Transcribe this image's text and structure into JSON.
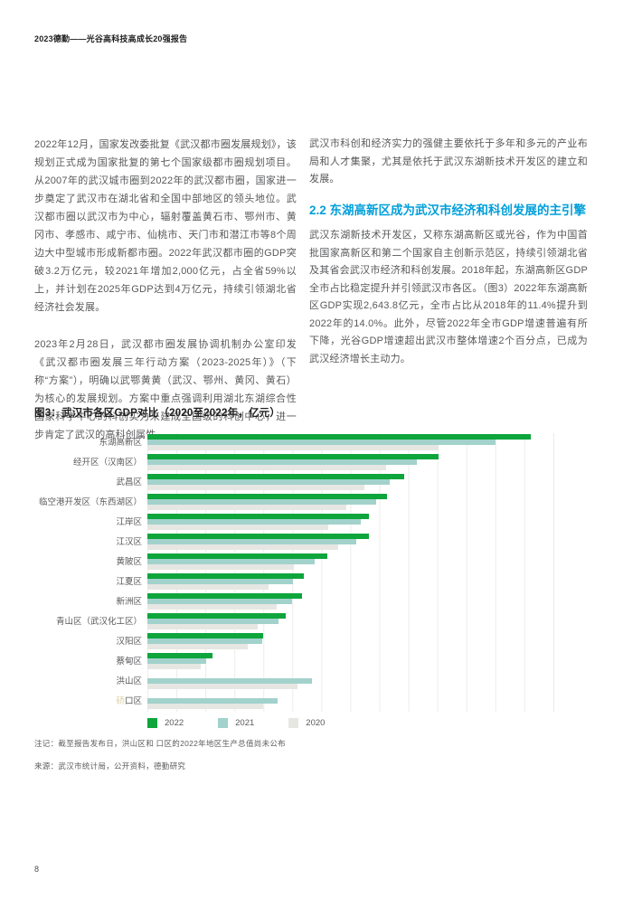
{
  "header": {
    "title": "2023德勤——光谷高科技高成长20强报告"
  },
  "columns": {
    "left": {
      "para1": "2022年12月，国家发改委批复《武汉都市圈发展规划》，该规划正式成为国家批复的第七个国家级都市圈规划项目。从2007年的武汉城市圈到2022年的武汉都市圈，国家进一步奠定了武汉市在湖北省和全国中部地区的领头地位。武汉都市圈以武汉市为中心，辐射覆盖黄石市、鄂州市、黄冈市、孝感市、咸宁市、仙桃市、天门市和潜江市等8个周边大中型城市形成新都市圈。2022年武汉都市圈的GDP突破3.2万亿元，较2021年增加2,000亿元，占全省59%以上，并计划在2025年GDP达到4万亿元，持续引领湖北省经济社会发展。",
      "para2": "2023年2月28日，武汉都市圈发展协调机制办公室印发《武汉都市圈发展三年行动方案（2023-2025年）》（下称“方案”），明确以武鄂黄黄（武汉、鄂州、黄冈、黄石）为核心的发展规划。方案中重点强调利用湖北东湖综合性国家科学中心的科创实力来建成全国级的科创中心，进一步肯定了武汉的高科创属性。"
    },
    "right": {
      "para1": "武汉市科创和经济实力的强健主要依托于多年和多元的产业布局和人才集聚，尤其是依托于武汉东湖新技术开发区的建立和发展。",
      "heading": "2.2 东湖高新区成为武汉市经济和科创发展的主引擎",
      "para2": "武汉东湖新技术开发区，又称东湖高新区或光谷，作为中国首批国家高新区和第二个国家自主创新示范区，持续引领湖北省及其省会武汉市经济和科创发展。2018年起，东湖高新区GDP全市占比稳定提升并引领武汉市各区。（图3）2022年东湖高新区GDP实现2,643.8亿元，全市占比从2018年的11.4%提升到2022年的14.0%。此外，尽管2022年全市GDP增速普遍有所下降，光谷GDP增速超出武汉市整体增速2个百分点，已成为武汉经济增长主动力。"
    }
  },
  "chart_data": {
    "type": "bar",
    "orientation": "horizontal",
    "title": "图3：武汉市各区GDP对比（2020至2022年，亿元）",
    "unit": "亿元",
    "xlim": [
      0,
      2800
    ],
    "gridline_step": 200,
    "grid": true,
    "legend_position": "bottom-left",
    "categories": [
      "东湖高新区",
      "经开区（汉南区）",
      "武昌区",
      "临空港开发区（东西湖区）",
      "江岸区",
      "江汉区",
      "黄陂区",
      "江夏区",
      "新洲区",
      "青山区（武汉化工区）",
      "汉阳区",
      "蔡甸区",
      "洪山区",
      "硚口区"
    ],
    "missing_glyph_categories": [
      "硚口区"
    ],
    "series": [
      {
        "name": "2022",
        "color": "#0ea53c",
        "values": [
          2643.8,
          2010,
          1770,
          1650,
          1530,
          1530,
          1240,
          1080,
          1065,
          955,
          800,
          450,
          null,
          null
        ]
      },
      {
        "name": "2021",
        "color": "#a2d2cb",
        "values": [
          2400,
          1860,
          1670,
          1575,
          1470,
          1440,
          1155,
          1005,
          1000,
          905,
          790,
          405,
          1135,
          900
        ]
      },
      {
        "name": "2020",
        "color": "#e6e6e3",
        "values": [
          2005,
          1645,
          1495,
          1370,
          1245,
          1315,
          1010,
          835,
          890,
          760,
          695,
          370,
          1035,
          800
        ]
      }
    ],
    "note": "注记：截至报告发布日，洪山区和 口区的2022年地区生产总值尚未公布",
    "source": "来源：武汉市统计局，公开资料，德勤研究"
  },
  "footer": {
    "page_number": "8"
  }
}
